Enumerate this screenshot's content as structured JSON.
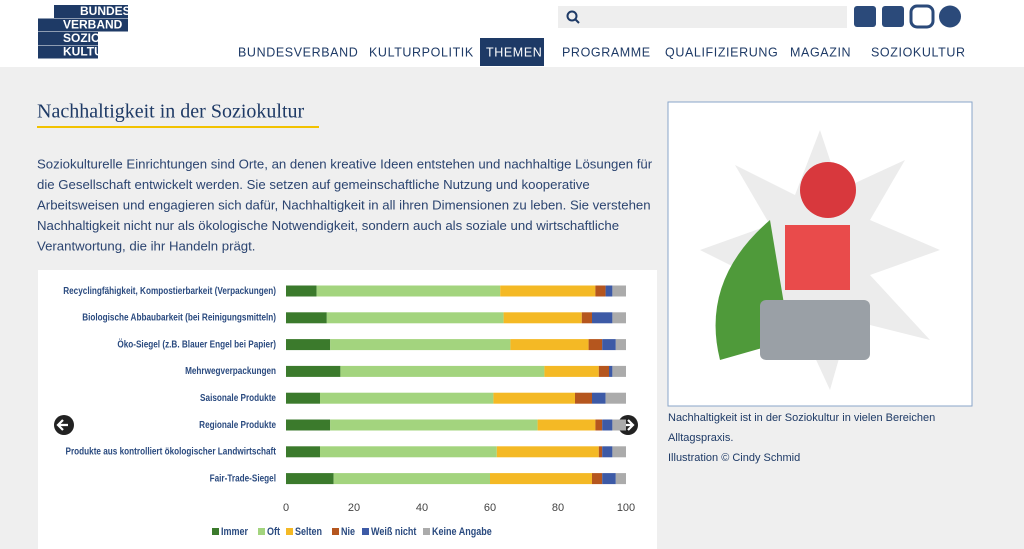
{
  "header": {
    "logo": [
      "BUNDES",
      "VERBAND",
      "SOZIO",
      "KULTUR"
    ],
    "nav": [
      "BUNDESVERBAND",
      "KULTURPOLITIK",
      "THEMEN",
      "PROGRAMME",
      "QUALIFIZIERUNG",
      "MAGAZIN",
      "SOZIOKULTUR"
    ],
    "active_nav": 2
  },
  "article": {
    "title": "Nachhaltigkeit in der Soziokultur",
    "lines": [
      "Soziokulturelle Einrichtungen sind Orte, an denen kreative Ideen entstehen und nachhaltige Lösungen für",
      "die Gesellschaft entwickelt werden. Sie setzen auf gemeinschaftliche Nutzung und kooperative",
      "Arbeitsweisen und engagieren sich dafür, Nachhaltigkeit in all ihren Dimensionen zu leben. Sie verstehen",
      "Nachhaltigkeit nicht nur als ökologische Notwendigkeit, sondern auch als soziale und wirtschaftliche",
      "Verantwortung, die ihr Handeln prägt."
    ]
  },
  "caption": [
    "Nachhaltigkeit ist in der Soziokultur in vielen Bereichen",
    "Alltagspraxis.",
    "Illustration © Cindy Schmid"
  ],
  "chart_data": {
    "type": "bar",
    "orientation": "horizontal",
    "stacked": true,
    "categories": [
      "Recyclingfähigkeit, Kompostierbarkeit (Verpackungen)",
      "Biologische Abbaubarkeit (bei Reinigungsmitteln)",
      "Öko-Siegel (z.B. Blauer Engel bei Papier)",
      "Mehrwegverpackungen",
      "Saisonale Produkte",
      "Regionale Produkte",
      "Produkte aus kontrolliert ökologischer Landwirtschaft",
      "Fair-Trade-Siegel"
    ],
    "series": [
      {
        "name": "Immer",
        "color": "#3b7a2c",
        "values": [
          9,
          12,
          13,
          16,
          10,
          13,
          10,
          14
        ]
      },
      {
        "name": "Oft",
        "color": "#a3d47e",
        "values": [
          54,
          52,
          53,
          60,
          51,
          61,
          52,
          46
        ]
      },
      {
        "name": "Selten",
        "color": "#f4b925",
        "values": [
          28,
          23,
          23,
          16,
          24,
          17,
          30,
          30
        ]
      },
      {
        "name": "Nie",
        "color": "#b5561e",
        "values": [
          3,
          3,
          4,
          3,
          5,
          2,
          1,
          3
        ]
      },
      {
        "name": "Weiß nicht",
        "color": "#3d5aa6",
        "values": [
          2,
          6,
          4,
          1,
          4,
          3,
          3,
          4
        ]
      },
      {
        "name": "Keine Angabe",
        "color": "#ababab",
        "values": [
          4,
          4,
          3,
          4,
          6,
          4,
          4,
          3
        ]
      }
    ],
    "xlim": [
      0,
      100
    ],
    "xticks": [
      0,
      20,
      40,
      60,
      80,
      100
    ],
    "grid": false,
    "legend": "bottom"
  }
}
